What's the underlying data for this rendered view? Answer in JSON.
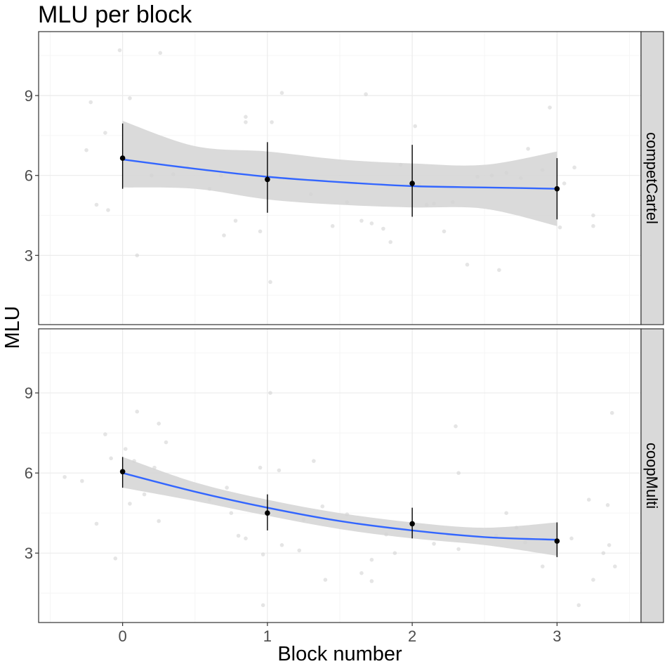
{
  "colors": {
    "panel_border": "#333333",
    "grid_major": "#ebebeb",
    "grid_minor": "#f5f5f5",
    "strip_fill": "#d9d9d9",
    "ribbon_fill": "#d4d4d4",
    "smooth_line": "#3366ff",
    "point": "#000000",
    "jitter_point": "#d0d0d0",
    "text": "#000000",
    "tick_text": "#4d4d4d"
  },
  "chart_data": {
    "type": "line",
    "title": "MLU per block",
    "xlabel": "Block number",
    "ylabel": "MLU",
    "xlim": [
      -0.58,
      3.58
    ],
    "ylim": [
      0.4,
      11.4
    ],
    "x_ticks": [
      0,
      1,
      2,
      3
    ],
    "y_ticks": [
      3,
      6,
      9
    ],
    "grid": true,
    "facets": [
      {
        "label": "competCartel",
        "means": [
          {
            "x": 0,
            "y": 6.65,
            "lo": 5.5,
            "hi": 7.95
          },
          {
            "x": 1,
            "y": 5.85,
            "lo": 4.6,
            "hi": 7.25
          },
          {
            "x": 2,
            "y": 5.7,
            "lo": 4.45,
            "hi": 7.15
          },
          {
            "x": 3,
            "y": 5.5,
            "lo": 4.35,
            "hi": 6.65
          }
        ],
        "smooth": [
          {
            "x": 0,
            "y": 6.6,
            "lo": 5.55,
            "hi": 8.05
          },
          {
            "x": 0.5,
            "y": 6.25,
            "lo": 5.5,
            "hi": 7.1
          },
          {
            "x": 1,
            "y": 5.95,
            "lo": 5.1,
            "hi": 6.9
          },
          {
            "x": 1.5,
            "y": 5.75,
            "lo": 4.9,
            "hi": 6.6
          },
          {
            "x": 2,
            "y": 5.6,
            "lo": 4.8,
            "hi": 6.45
          },
          {
            "x": 2.5,
            "y": 5.55,
            "lo": 4.75,
            "hi": 6.4
          },
          {
            "x": 3,
            "y": 5.5,
            "lo": 4.1,
            "hi": 6.9
          }
        ],
        "jitter": [
          [
            -0.25,
            6.95
          ],
          [
            -0.22,
            8.75
          ],
          [
            -0.18,
            4.9
          ],
          [
            -0.1,
            4.7
          ],
          [
            -0.02,
            10.7
          ],
          [
            -0.12,
            7.6
          ],
          [
            0.05,
            8.9
          ],
          [
            0.1,
            3.0
          ],
          [
            0.2,
            6.0
          ],
          [
            0.26,
            10.6
          ],
          [
            0.35,
            6.05
          ],
          [
            0.45,
            6.3
          ],
          [
            0.6,
            5.5
          ],
          [
            0.68,
            6.0
          ],
          [
            0.7,
            3.75
          ],
          [
            0.78,
            4.3
          ],
          [
            0.85,
            8.0
          ],
          [
            0.85,
            8.2
          ],
          [
            0.95,
            3.9
          ],
          [
            0.97,
            5.8
          ],
          [
            1.02,
            2.0
          ],
          [
            1.03,
            8.0
          ],
          [
            1.1,
            9.1
          ],
          [
            1.3,
            5.3
          ],
          [
            1.45,
            4.1
          ],
          [
            1.55,
            5.0
          ],
          [
            1.65,
            4.3
          ],
          [
            1.68,
            9.05
          ],
          [
            1.72,
            4.2
          ],
          [
            1.8,
            4.0
          ],
          [
            1.85,
            3.5
          ],
          [
            1.92,
            6.4
          ],
          [
            2.02,
            7.85
          ],
          [
            2.05,
            5.65
          ],
          [
            2.1,
            4.9
          ],
          [
            2.15,
            4.95
          ],
          [
            2.22,
            3.9
          ],
          [
            2.28,
            5.0
          ],
          [
            2.38,
            2.65
          ],
          [
            2.45,
            5.95
          ],
          [
            2.55,
            6.0
          ],
          [
            2.6,
            2.45
          ],
          [
            2.65,
            6.1
          ],
          [
            2.75,
            5.9
          ],
          [
            2.8,
            7.0
          ],
          [
            2.9,
            6.2
          ],
          [
            2.95,
            8.55
          ],
          [
            3.05,
            5.7
          ],
          [
            3.12,
            6.3
          ],
          [
            3.25,
            4.5
          ],
          [
            3.25,
            4.1
          ],
          [
            3.02,
            4.05
          ]
        ]
      },
      {
        "label": "coopMulti",
        "means": [
          {
            "x": 0,
            "y": 6.05,
            "lo": 5.45,
            "hi": 6.6
          },
          {
            "x": 1,
            "y": 4.5,
            "lo": 3.85,
            "hi": 5.2
          },
          {
            "x": 2,
            "y": 4.1,
            "lo": 3.55,
            "hi": 4.7
          },
          {
            "x": 3,
            "y": 3.45,
            "lo": 2.85,
            "hi": 4.15
          }
        ],
        "smooth": [
          {
            "x": 0,
            "y": 6.0,
            "lo": 5.45,
            "hi": 6.6
          },
          {
            "x": 0.5,
            "y": 5.3,
            "lo": 4.95,
            "hi": 5.65
          },
          {
            "x": 1,
            "y": 4.7,
            "lo": 4.4,
            "hi": 5.0
          },
          {
            "x": 1.5,
            "y": 4.2,
            "lo": 3.9,
            "hi": 4.5
          },
          {
            "x": 2,
            "y": 3.85,
            "lo": 3.55,
            "hi": 4.15
          },
          {
            "x": 2.5,
            "y": 3.6,
            "lo": 3.3,
            "hi": 3.95
          },
          {
            "x": 3,
            "y": 3.5,
            "lo": 2.9,
            "hi": 4.15
          }
        ],
        "jitter": [
          [
            -0.4,
            5.85
          ],
          [
            -0.28,
            5.7
          ],
          [
            -0.18,
            4.1
          ],
          [
            -0.12,
            7.45
          ],
          [
            -0.08,
            6.55
          ],
          [
            -0.05,
            2.8
          ],
          [
            0.02,
            6.9
          ],
          [
            0.05,
            4.85
          ],
          [
            0.08,
            6.45
          ],
          [
            0.1,
            8.3
          ],
          [
            0.15,
            5.2
          ],
          [
            0.22,
            6.2
          ],
          [
            0.25,
            7.85
          ],
          [
            0.25,
            4.2
          ],
          [
            0.3,
            7.15
          ],
          [
            0.6,
            5.0
          ],
          [
            0.72,
            5.45
          ],
          [
            0.75,
            4.5
          ],
          [
            0.8,
            3.65
          ],
          [
            0.85,
            3.55
          ],
          [
            0.95,
            6.2
          ],
          [
            0.97,
            2.95
          ],
          [
            0.97,
            1.05
          ],
          [
            1.02,
            9.0
          ],
          [
            1.08,
            6.1
          ],
          [
            1.1,
            3.3
          ],
          [
            1.22,
            3.1
          ],
          [
            1.25,
            4.25
          ],
          [
            1.32,
            6.45
          ],
          [
            1.38,
            4.75
          ],
          [
            1.4,
            2.0
          ],
          [
            1.55,
            4.45
          ],
          [
            1.65,
            2.25
          ],
          [
            1.72,
            1.95
          ],
          [
            1.72,
            2.75
          ],
          [
            1.82,
            3.7
          ],
          [
            1.88,
            3.0
          ],
          [
            2.15,
            3.35
          ],
          [
            2.3,
            7.75
          ],
          [
            2.32,
            6.0
          ],
          [
            2.32,
            3.15
          ],
          [
            2.58,
            3.65
          ],
          [
            2.65,
            4.5
          ],
          [
            2.72,
            3.95
          ],
          [
            2.78,
            3.4
          ],
          [
            2.9,
            2.5
          ],
          [
            3.1,
            3.55
          ],
          [
            3.15,
            1.05
          ],
          [
            3.22,
            5.0
          ],
          [
            3.25,
            2.0
          ],
          [
            3.32,
            3.0
          ],
          [
            3.36,
            3.3
          ],
          [
            3.38,
            8.25
          ],
          [
            3.4,
            2.5
          ],
          [
            3.35,
            4.8
          ]
        ]
      }
    ]
  }
}
